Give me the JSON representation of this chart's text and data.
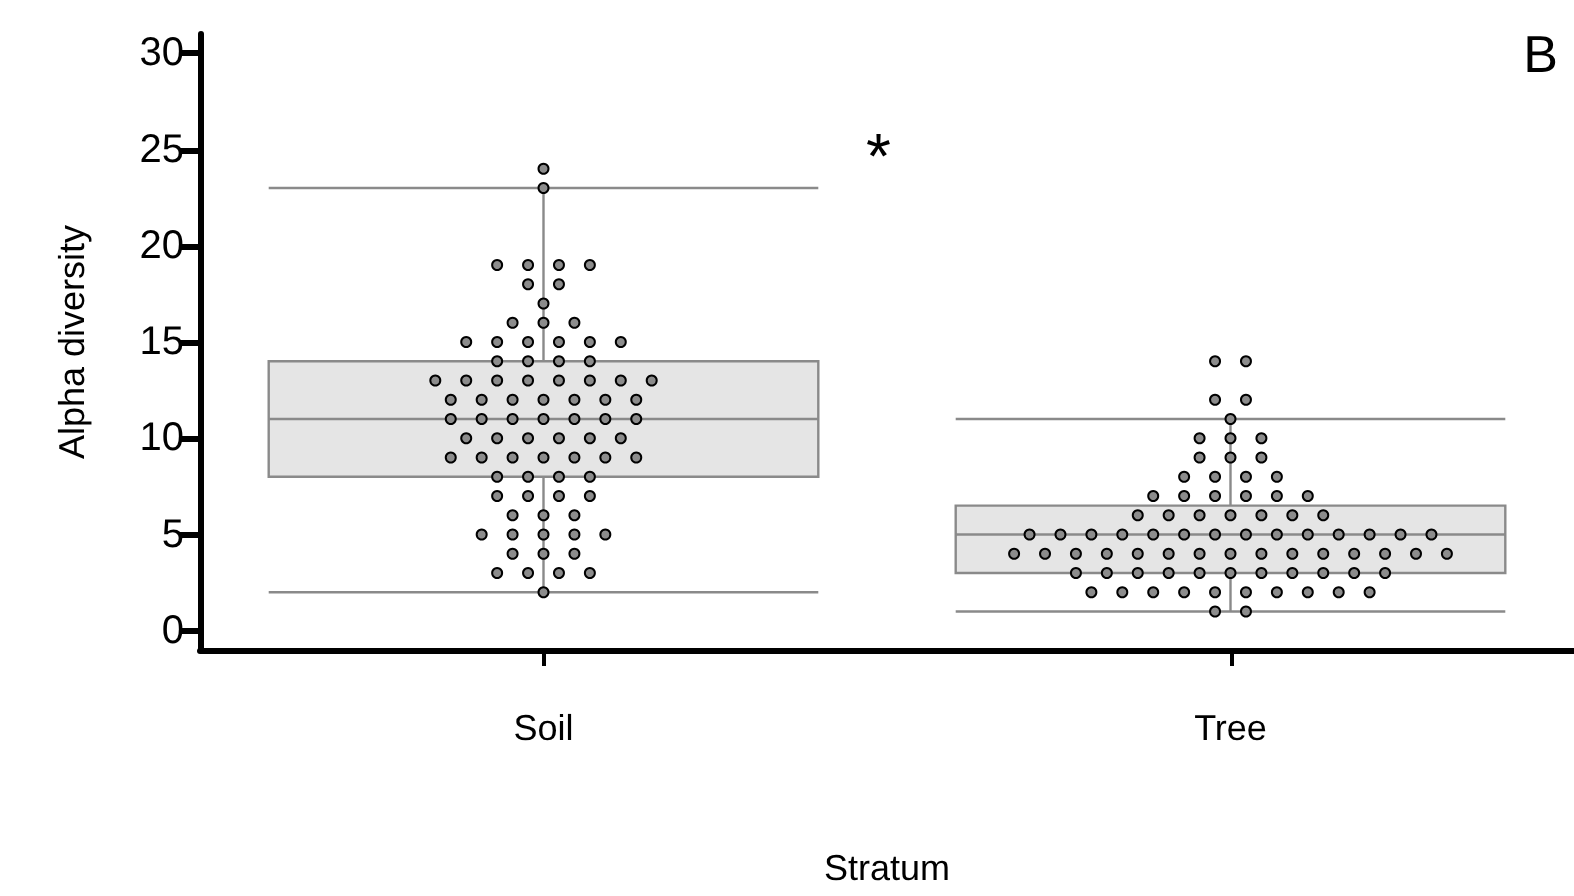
{
  "chart_data": {
    "type": "box",
    "xlabel": "Stratum",
    "ylabel": "Alpha diversity",
    "annotations": [
      "B",
      "*"
    ],
    "categories": [
      "Soil",
      "Tree"
    ],
    "boxes": [
      {
        "low": 2,
        "q1": 8,
        "median": 11,
        "q3": 14,
        "high": 23
      },
      {
        "low": 1,
        "q1": 3,
        "median": 5,
        "q3": 6.5,
        "high": 11
      }
    ],
    "color": "#e5e5e5",
    "ylim": [
      -1,
      31
    ],
    "yticks": [
      0,
      5,
      10,
      15,
      20,
      25,
      30
    ],
    "grid": false,
    "series": [
      {
        "type": "scatter",
        "color": "#000000",
        "x": [
          "Soil",
          "Soil",
          "Soil",
          "Soil",
          "Soil",
          "Soil",
          "Soil",
          "Soil",
          "Soil",
          "Soil",
          "Soil",
          "Soil",
          "Soil",
          "Soil",
          "Soil",
          "Soil",
          "Soil",
          "Soil",
          "Soil",
          "Soil",
          "Soil",
          "Soil",
          "Soil",
          "Soil",
          "Soil",
          "Soil",
          "Soil",
          "Soil",
          "Soil",
          "Soil",
          "Soil",
          "Soil",
          "Soil",
          "Soil",
          "Soil",
          "Soil",
          "Soil",
          "Soil",
          "Soil",
          "Soil",
          "Soil",
          "Soil",
          "Soil",
          "Soil",
          "Soil",
          "Soil",
          "Soil",
          "Soil",
          "Soil",
          "Soil",
          "Soil",
          "Soil",
          "Soil",
          "Soil",
          "Soil",
          "Soil",
          "Soil",
          "Soil",
          "Soil",
          "Soil",
          "Soil",
          "Soil",
          "Soil",
          "Soil",
          "Soil",
          "Soil",
          "Soil",
          "Soil",
          "Soil",
          "Soil",
          "Soil",
          "Soil",
          "Soil",
          "Soil",
          "Soil",
          "Soil",
          "Soil",
          "Soil",
          "Soil",
          "Soil",
          "Soil"
        ],
        "values": [
          24,
          23,
          19,
          19,
          19,
          19,
          18,
          18,
          17,
          16,
          16,
          16,
          15,
          15,
          15,
          15,
          15,
          15,
          14,
          14,
          14,
          14,
          13,
          13,
          13,
          13,
          13,
          13,
          13,
          13,
          12,
          12,
          12,
          12,
          12,
          12,
          12,
          11,
          11,
          11,
          11,
          11,
          11,
          11,
          10,
          10,
          10,
          10,
          10,
          10,
          9,
          9,
          9,
          9,
          9,
          9,
          9,
          8,
          8,
          8,
          8,
          7,
          7,
          7,
          7,
          6,
          6,
          6,
          5,
          5,
          5,
          5,
          5,
          4,
          4,
          4,
          3,
          3,
          3,
          3,
          2
        ]
      },
      {
        "type": "scatter",
        "color": "#000000",
        "x": [
          "Tree",
          "Tree",
          "Tree",
          "Tree",
          "Tree",
          "Tree",
          "Tree",
          "Tree",
          "Tree",
          "Tree",
          "Tree",
          "Tree",
          "Tree",
          "Tree",
          "Tree",
          "Tree",
          "Tree",
          "Tree",
          "Tree",
          "Tree",
          "Tree",
          "Tree",
          "Tree",
          "Tree",
          "Tree",
          "Tree",
          "Tree",
          "Tree",
          "Tree",
          "Tree",
          "Tree",
          "Tree",
          "Tree",
          "Tree",
          "Tree",
          "Tree",
          "Tree",
          "Tree",
          "Tree",
          "Tree",
          "Tree",
          "Tree",
          "Tree",
          "Tree",
          "Tree",
          "Tree",
          "Tree",
          "Tree",
          "Tree",
          "Tree",
          "Tree",
          "Tree",
          "Tree",
          "Tree",
          "Tree",
          "Tree",
          "Tree",
          "Tree",
          "Tree",
          "Tree",
          "Tree",
          "Tree",
          "Tree",
          "Tree",
          "Tree",
          "Tree",
          "Tree",
          "Tree",
          "Tree",
          "Tree",
          "Tree",
          "Tree",
          "Tree",
          "Tree",
          "Tree",
          "Tree",
          "Tree",
          "Tree",
          "Tree",
          "Tree"
        ],
        "values": [
          14,
          14,
          12,
          12,
          11,
          10,
          10,
          10,
          9,
          9,
          9,
          8,
          8,
          8,
          8,
          7,
          7,
          7,
          7,
          7,
          7,
          6,
          6,
          6,
          6,
          6,
          6,
          6,
          5,
          5,
          5,
          5,
          5,
          5,
          5,
          5,
          5,
          5,
          5,
          5,
          5,
          5,
          4,
          4,
          4,
          4,
          4,
          4,
          4,
          4,
          4,
          4,
          4,
          4,
          4,
          4,
          4,
          3,
          3,
          3,
          3,
          3,
          3,
          3,
          3,
          3,
          3,
          3,
          2,
          2,
          2,
          2,
          2,
          2,
          2,
          2,
          2,
          2,
          1,
          1
        ]
      }
    ],
    "marker": "circle"
  }
}
